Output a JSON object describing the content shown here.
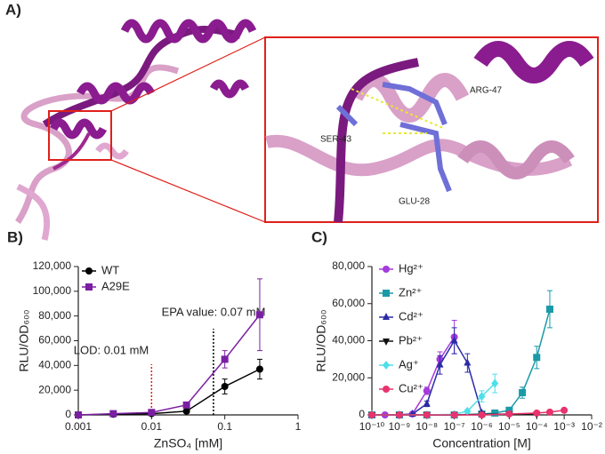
{
  "panel_a": {
    "label": "A)",
    "residues": [
      "ARG-47",
      "SER-43",
      "GLU-28"
    ]
  },
  "chart_data": [
    {
      "type": "scatter-line",
      "panel_label": "B)",
      "xlabel": "ZnSO₄ [mM]",
      "ylabel": "RLU/OD₆₀₀",
      "xscale": "log",
      "xlim": [
        0.001,
        1
      ],
      "xticks": [
        0.001,
        0.01,
        0.1,
        1
      ],
      "ylim": [
        0,
        120000
      ],
      "yticks": [
        0,
        {
          "value": 20000,
          "label": "20,000"
        },
        {
          "value": 40000,
          "label": "40,000"
        },
        {
          "value": 60000,
          "label": "60,000"
        },
        {
          "value": 80000,
          "label": "80,000"
        },
        {
          "value": 100000,
          "label": "100,000"
        },
        {
          "value": 120000,
          "label": "120,000"
        }
      ],
      "legend": "top-left",
      "series": [
        {
          "name": "WT",
          "color": "#000000",
          "marker": "circle",
          "x": [
            0.001,
            0.003,
            0.01,
            0.03,
            0.1,
            0.3
          ],
          "values": [
            0,
            500,
            1000,
            3000,
            23000,
            37000
          ],
          "errors": [
            0,
            200,
            300,
            800,
            6000,
            8000
          ]
        },
        {
          "name": "A29E",
          "color": "#7b1fa2",
          "marker": "square",
          "x": [
            0.001,
            0.003,
            0.01,
            0.03,
            0.1,
            0.3
          ],
          "values": [
            0,
            1000,
            2000,
            8000,
            45000,
            81000
          ],
          "errors": [
            0,
            300,
            500,
            1500,
            7000,
            29000
          ]
        }
      ],
      "vlines": [
        {
          "x": 0.07,
          "label": "EPA value: 0.07 mM",
          "color": "#000000"
        },
        {
          "x": 0.01,
          "label": "LOD: 0.01 mM",
          "color": "#e0201b"
        }
      ]
    },
    {
      "type": "scatter-line",
      "panel_label": "C)",
      "xlabel": "Concentration [M]",
      "ylabel": "RLU/OD₆₀₀",
      "xscale": "log",
      "xlim": [
        1e-10,
        0.01
      ],
      "xticks": [
        {
          "value": 1e-10,
          "label": "10⁻¹⁰"
        },
        {
          "value": 1e-09,
          "label": "10⁻⁹"
        },
        {
          "value": 1e-08,
          "label": "10⁻⁸"
        },
        {
          "value": 1e-07,
          "label": "10⁻⁷"
        },
        {
          "value": 1e-06,
          "label": "10⁻⁶"
        },
        {
          "value": 1e-05,
          "label": "10⁻⁵"
        },
        {
          "value": 0.0001,
          "label": "10⁻⁴"
        },
        {
          "value": 0.001,
          "label": "10⁻³"
        },
        {
          "value": 0.01,
          "label": "10⁻²"
        }
      ],
      "ylim": [
        0,
        80000
      ],
      "yticks": [
        0,
        {
          "value": 20000,
          "label": "20,000"
        },
        {
          "value": 40000,
          "label": "40,000"
        },
        {
          "value": 60000,
          "label": "60,000"
        },
        {
          "value": 80000,
          "label": "80,000"
        }
      ],
      "legend": "top-left",
      "series": [
        {
          "name": "Hg²⁺",
          "color": "#a43bdc",
          "marker": "circle",
          "x": [
            1e-10,
            3e-10,
            1e-09,
            3e-09,
            1e-08,
            3e-08,
            1e-07
          ],
          "values": [
            0,
            0,
            200,
            500,
            13000,
            30000,
            42000
          ],
          "errors": [
            0,
            0,
            0,
            300,
            2000,
            4000,
            9000
          ]
        },
        {
          "name": "Zn²⁺",
          "color": "#1a9aa8",
          "marker": "square",
          "x": [
            1e-10,
            1e-09,
            1e-08,
            1e-07,
            1e-06,
            3e-06,
            1e-05,
            3e-05,
            0.0001,
            0.0003
          ],
          "values": [
            0,
            0,
            0,
            0,
            500,
            1000,
            2500,
            12000,
            31000,
            57000
          ],
          "errors": [
            0,
            0,
            0,
            0,
            200,
            300,
            1000,
            3000,
            6000,
            10000
          ]
        },
        {
          "name": "Cd²⁺",
          "color": "#2b2ba8",
          "marker": "triangle",
          "x": [
            1e-10,
            1e-09,
            3e-09,
            1e-08,
            3e-08,
            1e-07,
            3e-07,
            1e-06
          ],
          "values": [
            0,
            0,
            500,
            6000,
            27000,
            40000,
            28000,
            1000
          ],
          "errors": [
            0,
            0,
            200,
            1500,
            5000,
            7000,
            5000,
            500
          ]
        },
        {
          "name": "Pb²⁺",
          "color": "#111111",
          "marker": "triangle-down",
          "x": [
            1e-10,
            1e-09,
            1e-08,
            1e-07,
            1e-06,
            1e-05,
            0.0001
          ],
          "values": [
            0,
            0,
            0,
            0,
            300,
            500,
            500
          ],
          "errors": [
            0,
            0,
            0,
            0,
            100,
            200,
            200
          ]
        },
        {
          "name": "Ag⁺",
          "color": "#4de0e8",
          "marker": "diamond",
          "x": [
            1e-10,
            1e-09,
            1e-08,
            1e-07,
            3e-07,
            1e-06,
            3e-06
          ],
          "values": [
            0,
            0,
            0,
            300,
            2000,
            10000,
            17000
          ],
          "errors": [
            0,
            0,
            0,
            100,
            1000,
            3000,
            5000
          ]
        },
        {
          "name": "Cu²⁺",
          "color": "#e8336e",
          "marker": "circle",
          "x": [
            1e-10,
            1e-09,
            1e-08,
            1e-07,
            1e-06,
            1e-05,
            0.0001,
            0.0003,
            0.001
          ],
          "values": [
            0,
            0,
            0,
            0,
            0,
            500,
            1000,
            1500,
            2500
          ],
          "errors": [
            0,
            0,
            0,
            0,
            0,
            200,
            300,
            400,
            600
          ]
        }
      ]
    }
  ]
}
